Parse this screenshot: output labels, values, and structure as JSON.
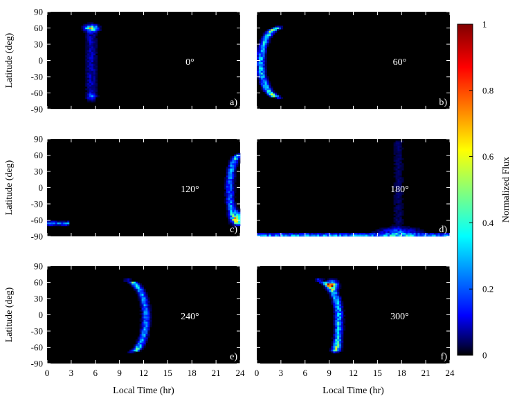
{
  "chart_data": {
    "type": "heatmap",
    "layout": "3 rows x 2 columns of panels sharing one colorbar on the right",
    "xlabel": "Local Time (hr)",
    "ylabel": "Latitude (deg)",
    "xlim": [
      0,
      24
    ],
    "ylim": [
      -90,
      90
    ],
    "x_ticks": [
      "0",
      "3",
      "6",
      "9",
      "12",
      "15",
      "18",
      "21",
      "24"
    ],
    "y_ticks": [
      "90",
      "60",
      "30",
      "0",
      "-30",
      "-60",
      "-90"
    ],
    "colorbar": {
      "label": "Normalized Flux",
      "range": [
        0,
        1
      ],
      "ticks": [
        "1",
        "0.8",
        "0.6",
        "0.4",
        "0.2",
        "0"
      ],
      "colormap": "jet (black at 0)"
    },
    "background_color": "#000000",
    "panels": [
      {
        "label": "a)",
        "angle": "0°",
        "row": 0,
        "col": 0,
        "show_ylabel": true,
        "show_xaxis": false,
        "features": [
          {
            "kind": "column",
            "lt": 5.5,
            "lat_min": -68,
            "lat_max": 58,
            "value": 0.08,
            "width": 0.9
          },
          {
            "kind": "spot",
            "lt": 5.5,
            "lat": 60,
            "value": 0.55,
            "sx": 0.5,
            "sy": 3.5
          },
          {
            "kind": "spot",
            "lt": 5.5,
            "lat": -68,
            "value": 0.15,
            "sx": 0.35,
            "sy": 4
          }
        ]
      },
      {
        "label": "b)",
        "angle": "60°",
        "row": 0,
        "col": 1,
        "show_ylabel": false,
        "show_xaxis": false,
        "features": [
          {
            "kind": "crescent",
            "lt_edge": 0.5,
            "lt_top": 2.8,
            "lt_bottom": 2.8,
            "lat_min": -68,
            "lat_max": 60,
            "value": 0.28
          }
        ]
      },
      {
        "label": "c)",
        "angle": "120°",
        "row": 1,
        "col": 0,
        "show_ylabel": true,
        "show_xaxis": false,
        "features": [
          {
            "kind": "crescent",
            "lt_edge": 22.7,
            "lt_top": 24.0,
            "lt_bottom": 24.0,
            "lat_min": -68,
            "lat_max": 60,
            "value": 0.22
          },
          {
            "kind": "spot",
            "lt": 23.6,
            "lat": -55,
            "value": 0.3,
            "sx": 0.5,
            "sy": 8
          },
          {
            "kind": "band",
            "lt_min": 0,
            "lt_max": 2.8,
            "lat": -66,
            "value": 0.22
          }
        ]
      },
      {
        "label": "d)",
        "angle": "180°",
        "row": 1,
        "col": 1,
        "show_ylabel": false,
        "show_xaxis": false,
        "features": [
          {
            "kind": "column",
            "lt": 17.6,
            "lat_min": -88,
            "lat_max": 88,
            "value": 0.04,
            "width": 0.9
          },
          {
            "kind": "band",
            "lt_min": 0,
            "lt_max": 24,
            "lat": -88,
            "value": 0.25
          },
          {
            "kind": "spot",
            "lt": 17.6,
            "lat": -82,
            "value": 0.18,
            "sx": 1.5,
            "sy": 5
          }
        ]
      },
      {
        "label": "e)",
        "angle": "240°",
        "row": 2,
        "col": 0,
        "show_ylabel": true,
        "show_xaxis": true,
        "features": [
          {
            "kind": "crescent",
            "lt_edge": 12.3,
            "lt_top": 10.0,
            "lt_bottom": 10.5,
            "lat_min": -68,
            "lat_max": 62,
            "value": 0.22
          }
        ]
      },
      {
        "label": "f)",
        "angle": "300°",
        "row": 2,
        "col": 1,
        "show_ylabel": false,
        "show_xaxis": true,
        "features": [
          {
            "kind": "crescent",
            "lt_edge": 10.2,
            "lt_top": 7.8,
            "lt_bottom": 9.7,
            "lat_min": -68,
            "lat_max": 62,
            "value": 0.3
          },
          {
            "kind": "spot",
            "lt": 9.4,
            "lat": 55,
            "value": 0.55,
            "sx": 0.4,
            "sy": 5
          }
        ]
      }
    ]
  }
}
